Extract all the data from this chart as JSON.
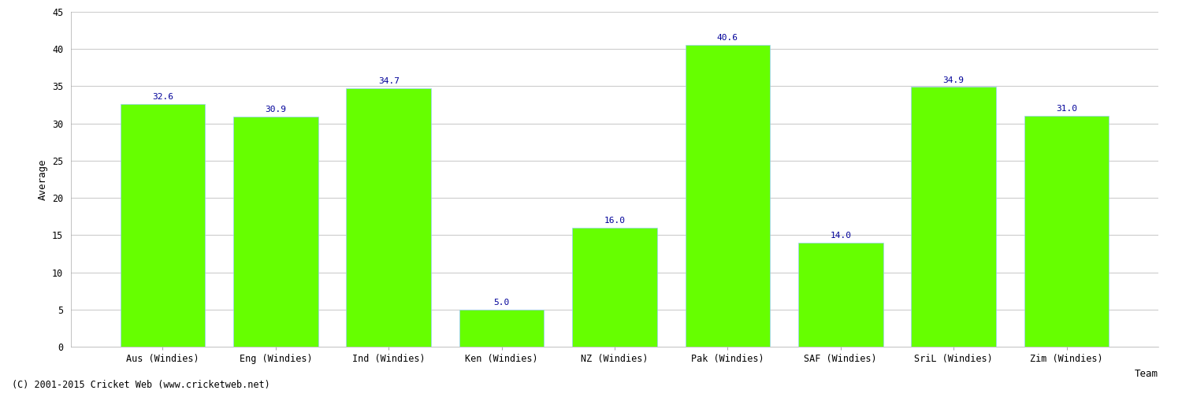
{
  "categories": [
    "Aus (Windies)",
    "Eng (Windies)",
    "Ind (Windies)",
    "Ken (Windies)",
    "NZ (Windies)",
    "Pak (Windies)",
    "SAF (Windies)",
    "SriL (Windies)",
    "Zim (Windies)"
  ],
  "values": [
    32.6,
    30.9,
    34.7,
    5.0,
    16.0,
    40.6,
    14.0,
    34.9,
    31.0
  ],
  "bar_color": "#66ff00",
  "bar_edge_color": "#99ccff",
  "label_color": "#000099",
  "ylabel": "Average",
  "xlabel": "Team",
  "ylim": [
    0,
    45
  ],
  "yticks": [
    0,
    5,
    10,
    15,
    20,
    25,
    30,
    35,
    40,
    45
  ],
  "grid_color": "#cccccc",
  "background_color": "#ffffff",
  "footer": "(C) 2001-2015 Cricket Web (www.cricketweb.net)",
  "label_fontsize": 8,
  "axis_label_fontsize": 9,
  "tick_fontsize": 8.5,
  "footer_fontsize": 8.5,
  "bar_width": 0.75
}
